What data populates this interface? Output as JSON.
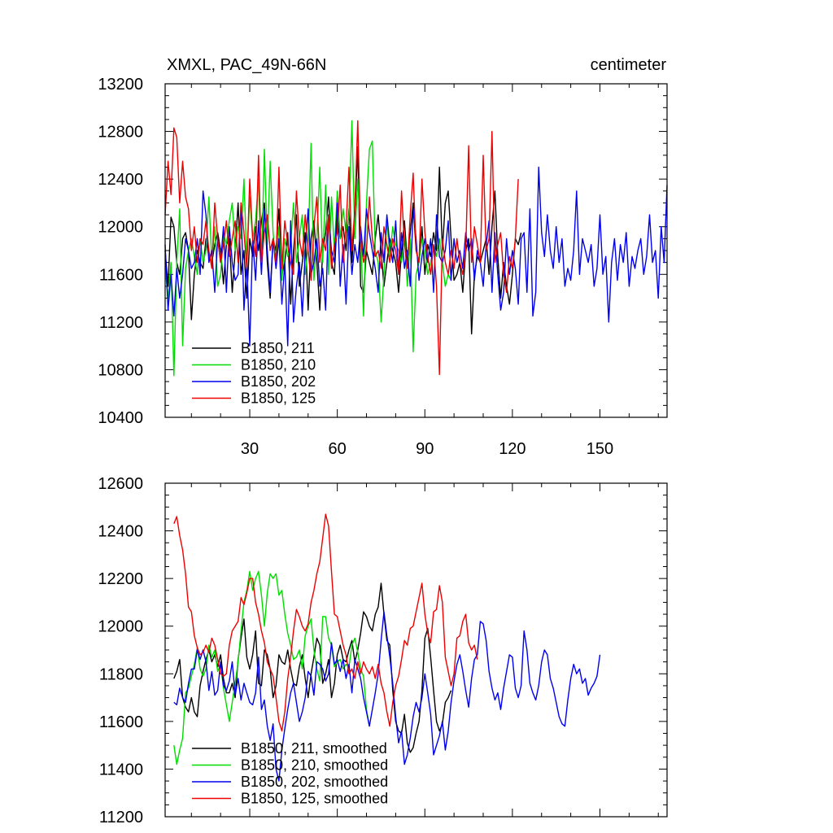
{
  "chart_data": [
    {
      "type": "line",
      "title": "XMXL, PAC_49N-66N",
      "units": "centimeter",
      "xlabel": "",
      "ylabel": "",
      "xlim": [
        1,
        173
      ],
      "ylim": [
        10400,
        13200
      ],
      "x_ticks": [
        30,
        60,
        90,
        120,
        150
      ],
      "y_ticks": [
        10400,
        10800,
        11200,
        11600,
        12000,
        12400,
        12800,
        13200
      ],
      "legend": "bottom-left",
      "series": [
        {
          "name": "B1850, 211",
          "color": "#000000",
          "x_start": 1,
          "values": [
            11800,
            11500,
            12080,
            12000,
            11700,
            11600,
            11900,
            11950,
            11800,
            11220,
            11600,
            11800,
            11700,
            11650,
            11900,
            11750,
            11700,
            11850,
            11950,
            11800,
            11520,
            11850,
            11900,
            11450,
            11800,
            12200,
            11600,
            11800,
            11400,
            11900,
            11750,
            12000,
            11800,
            12050,
            12200,
            11700,
            11400,
            11900,
            11800,
            12150,
            11600,
            11700,
            11950,
            11350,
            11800,
            12100,
            11500,
            11700,
            11950,
            11300,
            11900,
            12050,
            11700,
            11300,
            11800,
            11950,
            12250,
            11700,
            11600,
            12100,
            11900,
            12000,
            11800,
            12150,
            11700,
            12100,
            12670,
            11500,
            11450,
            11800,
            11700,
            11600,
            11900,
            12100,
            11800,
            11500,
            11700,
            11900,
            11800,
            11700,
            11450,
            11800,
            12050,
            11700,
            11950,
            12200,
            11800,
            11700,
            12000,
            11600,
            11850,
            11750,
            11950,
            11800,
            12500,
            11800,
            12200,
            12300,
            11900,
            11550,
            11600,
            11700,
            11450,
            11800,
            11900,
            11100,
            11600,
            11750,
            11700,
            11800,
            11900,
            11600,
            12000,
            12300,
            11750,
            11400,
            11700,
            11500,
            11350,
            11600,
            11900,
            11850,
            11950
          ]
        },
        {
          "name": "B1850, 210",
          "color": "#00dd00",
          "x_start": 1,
          "values": [
            11650,
            11400,
            11700,
            10750,
            11700,
            12150,
            11000,
            11650,
            11800,
            11900,
            11750,
            11600,
            11900,
            11700,
            11800,
            12250,
            11700,
            12000,
            11500,
            11600,
            11950,
            11850,
            12050,
            12200,
            11800,
            12000,
            11900,
            12400,
            11700,
            12250,
            11900,
            12050,
            12400,
            11650,
            12650,
            11850,
            12550,
            11950,
            11700,
            12000,
            11550,
            11900,
            11750,
            11850,
            12200,
            11700,
            11900,
            12100,
            11600,
            11850,
            12700,
            11550,
            11900,
            12500,
            11700,
            12350,
            11600,
            12250,
            11800,
            12300,
            11900,
            12150,
            11950,
            12100,
            12890,
            11900,
            12400,
            11950,
            11250,
            12200,
            12650,
            12720,
            11800,
            11700,
            11200,
            11600,
            12050,
            11750,
            12000,
            11850,
            11800,
            11700,
            11950,
            11500,
            11900,
            10950,
            11600,
            11700,
            11900,
            11800,
            11600,
            11700,
            11850,
            11750,
            11900,
            11700,
            11500,
            11600,
            11550
          ]
        },
        {
          "name": "B1850, 202",
          "color": "#0000ee",
          "x_start": 1,
          "values": [
            11850,
            11300,
            11600,
            11250,
            11650,
            11400,
            11600,
            11900,
            11800,
            11650,
            11700,
            11900,
            11600,
            12300,
            12100,
            11700,
            11800,
            11450,
            11900,
            11700,
            12000,
            11450,
            12000,
            11700,
            11550,
            11600,
            12200,
            11300,
            11700,
            11000,
            11900,
            11550,
            12050,
            11600,
            12150,
            11800,
            11450,
            11900,
            11650,
            11900,
            11350,
            11700,
            11000,
            12050,
            11200,
            11500,
            11700,
            11250,
            11800,
            12150,
            11600,
            11700,
            11900,
            11500,
            11650,
            11300,
            12100,
            11800,
            11700,
            12200,
            11500,
            11850,
            11350,
            12000,
            11600,
            11850,
            11700,
            12000,
            11750,
            12150,
            11950,
            11800,
            11650,
            11450,
            11950,
            11700,
            12100,
            11850,
            11700,
            12050,
            11600,
            11950,
            11650,
            11800,
            11500,
            12150,
            11900,
            11550,
            11750,
            11900,
            11700,
            11900,
            11450,
            12100,
            11750,
            11700,
            11800,
            12050,
            11550,
            11900,
            11700,
            11800,
            11650,
            11950,
            11800,
            11900,
            11550,
            11800,
            11700,
            11500,
            11850,
            12050,
            11450,
            11950,
            11600,
            11300,
            11450,
            11900,
            11600,
            11800,
            11650,
            11350,
            11900,
            11950,
            11450,
            12150,
            11250,
            11450,
            12500,
            11950,
            11750,
            12100,
            11800,
            11650,
            12000,
            11700,
            11900,
            11500,
            11650,
            11550,
            11800,
            12300,
            11600,
            11900,
            11800,
            11700,
            11850,
            11500,
            11650,
            12100,
            11600,
            11750,
            11200,
            11700,
            11900,
            11550,
            11850,
            11700,
            11950,
            11500,
            11750,
            11650,
            11800,
            11900,
            11600,
            11750,
            12100,
            11700,
            11800,
            11400,
            12000,
            11700,
            12350
          ]
        },
        {
          "name": "B1850, 125",
          "color": "#ee0000",
          "x_start": 1,
          "values": [
            12100,
            12550,
            12270,
            12830,
            12750,
            12200,
            12550,
            12250,
            12150,
            11800,
            12000,
            11700,
            11900,
            11850,
            12050,
            11800,
            11650,
            12200,
            11900,
            11700,
            11850,
            12050,
            11750,
            11900,
            12050,
            11700,
            12200,
            11950,
            11650,
            12400,
            11900,
            11750,
            12600,
            11700,
            11950,
            12100,
            11800,
            11900,
            11700,
            12500,
            11650,
            12050,
            11850,
            11700,
            11600,
            12300,
            11900,
            11750,
            12100,
            11800,
            11550,
            12000,
            12250,
            11700,
            11900,
            11800,
            12100,
            11650,
            11850,
            11950,
            12350,
            11700,
            12000,
            12500,
            11800,
            12150,
            12890,
            11900,
            11700,
            11800,
            12250,
            11900,
            11750,
            11800,
            11650,
            12000,
            11850,
            11700,
            11900,
            11800,
            11600,
            12300,
            11850,
            11650,
            12100,
            12450,
            11800,
            11700,
            12400,
            11950,
            11750,
            11600,
            11850,
            11500,
            10760,
            11900,
            11700,
            11600,
            11800,
            11650,
            11900,
            11700,
            11600,
            11800,
            12680,
            11700,
            12000,
            11850,
            11700,
            12600,
            11800,
            11900,
            12800,
            11700,
            11850,
            11950,
            11600,
            11450,
            11750,
            11650,
            11900,
            12400
          ]
        }
      ]
    },
    {
      "type": "line",
      "title": "",
      "xlabel": "",
      "ylabel": "",
      "xlim": [
        1,
        173
      ],
      "ylim": [
        11200,
        12600
      ],
      "x_ticks": [
        30,
        60,
        90,
        120,
        150
      ],
      "x_ticks_labeled": false,
      "y_ticks": [
        11200,
        11400,
        11600,
        11800,
        12000,
        12200,
        12400,
        12600
      ],
      "legend": "bottom-left",
      "series": [
        {
          "name": "B1850, 211, smoothed",
          "color": "#000000",
          "x_start": 4,
          "values": [
            11780,
            11810,
            11860,
            11700,
            11660,
            11640,
            11700,
            11640,
            11620,
            11750,
            11810,
            11860,
            11900,
            11850,
            11880,
            11830,
            11880,
            11780,
            11720,
            11720,
            11760,
            11700,
            11860,
            11950,
            12030,
            11870,
            11820,
            11880,
            11980,
            11760,
            11750,
            11900,
            11880,
            11820,
            11700,
            11750,
            11880,
            11850,
            11840,
            11900,
            11820,
            11760,
            11750,
            11830,
            11880,
            11780,
            11700,
            11800,
            11870,
            11950,
            11920,
            11760,
            11800,
            11860,
            11700,
            11760,
            11880,
            11920,
            11860,
            11850,
            11900,
            11940,
            11850,
            11900,
            11970,
            12060,
            12040,
            12000,
            11980,
            12050,
            12080,
            12180,
            12050,
            11940,
            11920,
            11730,
            11600,
            11560,
            11550,
            11630,
            11510,
            11470,
            11490,
            11550,
            11600,
            11730,
            11950,
            11990,
            11870,
            11730,
            11600,
            11560,
            11590,
            11680,
            11700,
            11730
          ]
        },
        {
          "name": "B1850, 210, smoothed",
          "color": "#00dd00",
          "x_start": 4,
          "values": [
            11500,
            11420,
            11480,
            11530,
            11720,
            11740,
            11790,
            11840,
            11910,
            11820,
            11790,
            11820,
            11920,
            11870,
            11900,
            11810,
            11840,
            11740,
            11670,
            11600,
            11680,
            11760,
            11850,
            11980,
            12100,
            12150,
            12230,
            12150,
            12200,
            12230,
            12130,
            12000,
            12140,
            12220,
            12200,
            12220,
            12130,
            12150,
            12050,
            11970,
            11920,
            11860,
            11870,
            11900,
            11820,
            11960,
            12000,
            12030,
            11900,
            11820,
            11770,
            12040,
            12040,
            11950,
            11920,
            11830,
            11850,
            11860,
            11820,
            11840,
            11830,
            11920,
            11950,
            11890,
            11820,
            11790,
            11650,
            11580
          ]
        },
        {
          "name": "B1850, 202, smoothed",
          "color": "#0000ee",
          "x_start": 4,
          "values": [
            11680,
            11670,
            11740,
            11700,
            11680,
            11760,
            11820,
            11820,
            11900,
            11860,
            11900,
            11850,
            11730,
            11810,
            11710,
            11730,
            11850,
            11750,
            11730,
            11770,
            11850,
            11710,
            11780,
            11690,
            11760,
            11720,
            11680,
            11670,
            11720,
            11870,
            11650,
            11690,
            11580,
            11520,
            11590,
            11400,
            11350,
            11480,
            11570,
            11650,
            11720,
            11760,
            11680,
            11600,
            11640,
            11700,
            11810,
            11790,
            11710,
            11850,
            11840,
            11820,
            11770,
            11800,
            11930,
            11840,
            11860,
            11810,
            11860,
            11780,
            11840,
            11720,
            11860,
            11820,
            11780,
            11700,
            11640,
            11580,
            11650,
            11720,
            11800,
            11940,
            12060,
            11960,
            11870,
            11760,
            11620,
            11510,
            11560,
            11420,
            11460,
            11530,
            11620,
            11680,
            11640,
            11700,
            11800,
            11720,
            11630,
            11460,
            11500,
            11540,
            11600,
            11480,
            11560,
            11680,
            11770,
            11840,
            11880,
            11810,
            11730,
            11660,
            11780,
            11860,
            11880,
            12020,
            12010,
            11940,
            11810,
            11740,
            11690,
            11720,
            11650,
            11740,
            11810,
            11880,
            11870,
            11740,
            11700,
            11750,
            11980,
            11900,
            11760,
            11720,
            11690,
            11750,
            11850,
            11900,
            11880,
            11780,
            11740,
            11680,
            11620,
            11590,
            11580,
            11690,
            11780,
            11840,
            11800,
            11820,
            11760,
            11780,
            11710,
            11740,
            11760,
            11790,
            11880
          ]
        },
        {
          "name": "B1850, 125, smoothed",
          "color": "#ee0000",
          "x_start": 4,
          "values": [
            12430,
            12460,
            12380,
            12320,
            12220,
            12080,
            12060,
            11960,
            11910,
            11880,
            11890,
            11920,
            11890,
            11950,
            11920,
            11860,
            11800,
            11790,
            11800,
            11920,
            11980,
            12000,
            12020,
            12120,
            12090,
            12140,
            12200,
            12200,
            12100,
            12050,
            11980,
            11930,
            11850,
            11820,
            11790,
            11700,
            11600,
            11560,
            11640,
            11780,
            11870,
            11980,
            12070,
            12040,
            12000,
            11980,
            12010,
            12100,
            12150,
            12220,
            12270,
            12370,
            12470,
            12420,
            12230,
            12050,
            12040,
            11980,
            11920,
            11880,
            11800,
            11820,
            11780,
            11850,
            11800,
            11850,
            11820,
            11800,
            11830,
            11780,
            11840,
            11760,
            11720,
            11640,
            11580,
            11680,
            11750,
            11790,
            11860,
            11940,
            11920,
            11990,
            12000,
            12060,
            12120,
            12180,
            12050,
            11970,
            11930,
            12060,
            12070,
            12170,
            12100,
            11870,
            11810,
            11750,
            11800,
            11950,
            11960,
            12020,
            12050,
            11930,
            11900,
            11920,
            11860
          ]
        }
      ]
    }
  ]
}
